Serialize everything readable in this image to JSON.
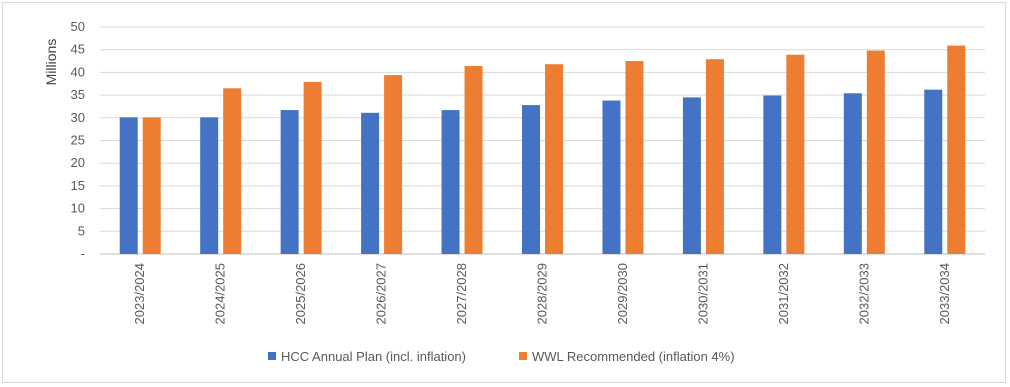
{
  "chart_data": {
    "type": "bar",
    "ylabel": "Millions",
    "xlabel": "",
    "title": "",
    "ylim": [
      0,
      50
    ],
    "y_ticks": [
      "-",
      "5",
      "10",
      "15",
      "20",
      "25",
      "30",
      "35",
      "40",
      "45",
      "50"
    ],
    "grid": true,
    "legend_position": "bottom",
    "categories": [
      "2023/2024",
      "2024/2025",
      "2025/2026",
      "2026/2027",
      "2027/2028",
      "2028/2029",
      "2029/2030",
      "2030/2031",
      "2031/2032",
      "2032/2033",
      "2033/2034"
    ],
    "series": [
      {
        "name": "HCC Annual Plan (incl. inflation)",
        "color": "#4472c4",
        "values": [
          30.1,
          30.1,
          31.7,
          31.1,
          31.7,
          32.8,
          33.8,
          34.5,
          34.9,
          35.4,
          36.2
        ]
      },
      {
        "name": "WWL Recommended (inflation 4%)",
        "color": "#ed7d31",
        "values": [
          30.1,
          36.5,
          37.9,
          39.4,
          41.4,
          41.8,
          42.5,
          42.9,
          43.9,
          44.8,
          45.9
        ]
      }
    ]
  }
}
